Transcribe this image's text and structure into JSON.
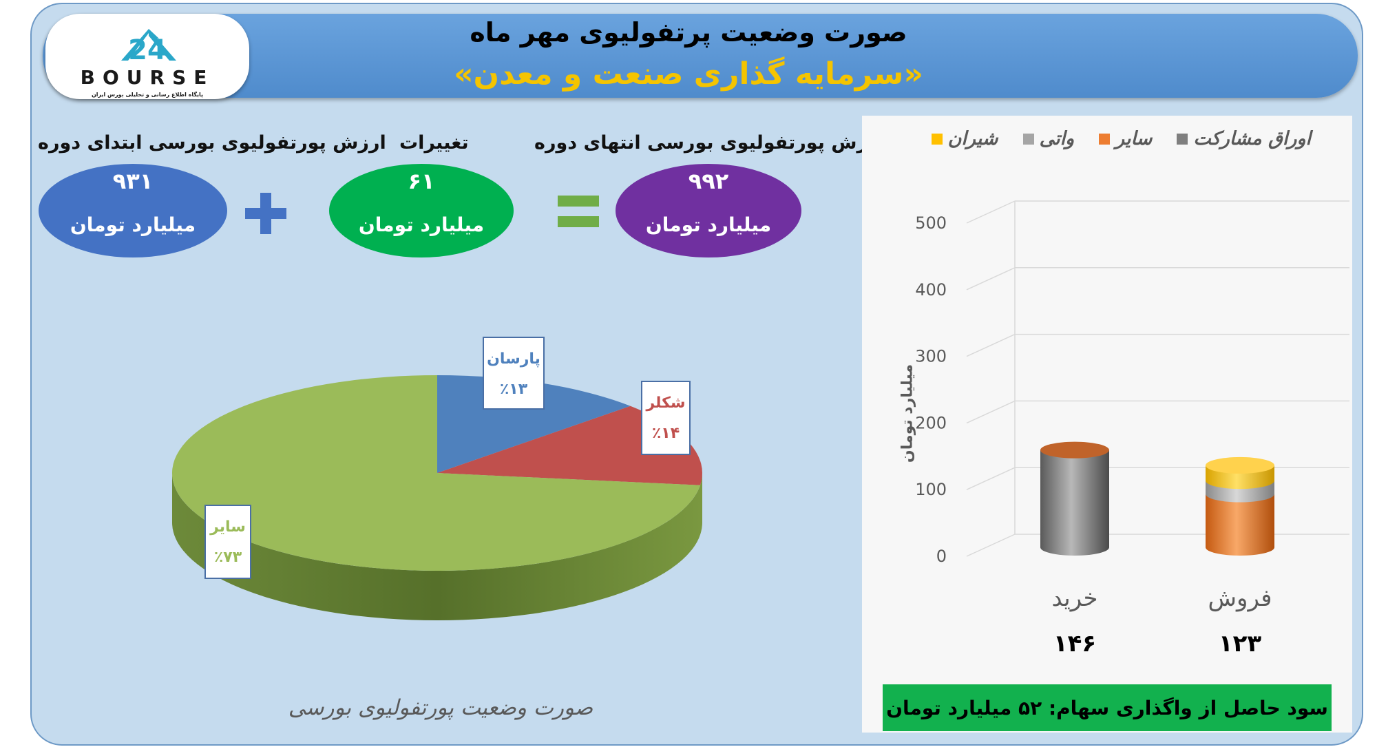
{
  "header": {
    "title": "صورت وضعیت پرتفولیوی مهر ماه",
    "subtitle": "«سرمایه گذاری صنعت و معدن»",
    "logo_text": "BOURSE",
    "logo_subtext": "پایگاه اطلاع رسانی و تحلیلی بورس ایران"
  },
  "summary": {
    "start_label": "ارزش پورتفولیوی بورسی ابتدای دوره",
    "start_value": "۹۳۱",
    "change_label": "تغییرات",
    "change_value": "۶۱",
    "end_label": "ارزش پورتفولیوی بورسی انتهای دوره",
    "end_value": "۹۹۲",
    "unit": "میلیارد تومان",
    "colors": {
      "start": "#4472c4",
      "change": "#00b050",
      "end": "#7030a0",
      "plus": "#4472c4",
      "equals": "#70ad47"
    }
  },
  "bottom_note": "سود حاصل از واگذاری سهام: ۵۲ میلیارد تومان",
  "chart_data": [
    {
      "type": "pie",
      "title": "صورت وضعیت پورتفولیوی بورسی",
      "slices": [
        {
          "label": "پارسان",
          "percent_text": "٪۱۳",
          "value": 13,
          "color": "#4f81bd"
        },
        {
          "label": "شکلر",
          "percent_text": "٪۱۴",
          "value": 14,
          "color": "#c0504d"
        },
        {
          "label": "سایر",
          "percent_text": "٪۷۳",
          "value": 73,
          "color": "#9bbb59"
        }
      ]
    },
    {
      "type": "bar",
      "stacked": true,
      "ylabel": "میلیارد تومان",
      "ylim": [
        0,
        500
      ],
      "yticks": [
        "0",
        "100",
        "200",
        "300",
        "400",
        "500"
      ],
      "grid": true,
      "legend_position": "top",
      "categories": [
        "خرید",
        "فروش"
      ],
      "totals_text": [
        "۱۴۶",
        "۱۲۳"
      ],
      "series": [
        {
          "name": "اوراق مشارکت",
          "color": "#7f7f7f",
          "values": [
            146,
            0
          ]
        },
        {
          "name": "سایر",
          "color": "#ed7d31",
          "values": [
            0,
            80
          ]
        },
        {
          "name": "واتی",
          "color": "#a5a5a5",
          "values": [
            0,
            20
          ]
        },
        {
          "name": "شیران",
          "color": "#ffc000",
          "values": [
            0,
            23
          ]
        }
      ]
    }
  ]
}
